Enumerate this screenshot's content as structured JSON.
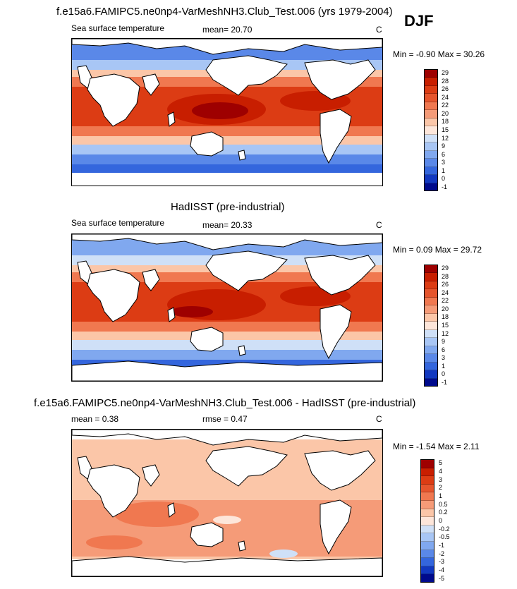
{
  "season": "DJF",
  "panels": [
    {
      "title": "f.e15a6.FAMIPC5.ne0np4-VarMeshNH3.Club_Test.006 (yrs 1979-2004)",
      "variable": "Sea surface temperature",
      "stat1": "mean=  20.70",
      "stat2": "",
      "units": "C",
      "minmax": "Min =  -0.90 Max =  30.26",
      "levels": [
        "29",
        "28",
        "26",
        "24",
        "22",
        "20",
        "18",
        "15",
        "12",
        "9",
        "6",
        "3",
        "1",
        "0",
        "-1"
      ],
      "colors": [
        "#9e0000",
        "#c81e00",
        "#dc3c14",
        "#e6552d",
        "#f07850",
        "#f59b78",
        "#fbc6a8",
        "#fde6da",
        "#cfe0f7",
        "#a8c6f5",
        "#80a8ef",
        "#5a88e8",
        "#3466dd",
        "#1238c0",
        "#000a8c"
      ]
    },
    {
      "title": "HadISST (pre-industrial)",
      "variable": "Sea surface temperature",
      "stat1": "mean=  20.33",
      "stat2": "",
      "units": "C",
      "minmax": "Min =  0.09 Max =  29.72",
      "levels": [
        "29",
        "28",
        "26",
        "24",
        "22",
        "20",
        "18",
        "15",
        "12",
        "9",
        "6",
        "3",
        "1",
        "0",
        "-1"
      ],
      "colors": [
        "#9e0000",
        "#c81e00",
        "#dc3c14",
        "#e6552d",
        "#f07850",
        "#f59b78",
        "#fbc6a8",
        "#fde6da",
        "#cfe0f7",
        "#a8c6f5",
        "#80a8ef",
        "#5a88e8",
        "#3466dd",
        "#1238c0",
        "#000a8c"
      ]
    },
    {
      "title": "f.e15a6.FAMIPC5.ne0np4-VarMeshNH3.Club_Test.006 - HadISST (pre-industrial)",
      "variable": "mean =   0.38",
      "stat1": "rmse =   0.47",
      "stat2": "",
      "units": "C",
      "minmax": "Min =  -1.54 Max =   2.11",
      "levels": [
        "5",
        "4",
        "3",
        "2",
        "1",
        "0.5",
        "0.2",
        "0",
        "-0.2",
        "-0.5",
        "-1",
        "-2",
        "-3",
        "-4",
        "-5"
      ],
      "colors": [
        "#9e0000",
        "#c81e00",
        "#dc3c14",
        "#e6552d",
        "#f07850",
        "#f59b78",
        "#fbc6a8",
        "#fde6da",
        "#cfe0f7",
        "#a8c6f5",
        "#80a8ef",
        "#5a88e8",
        "#3466dd",
        "#1238c0",
        "#000a8c"
      ]
    }
  ]
}
